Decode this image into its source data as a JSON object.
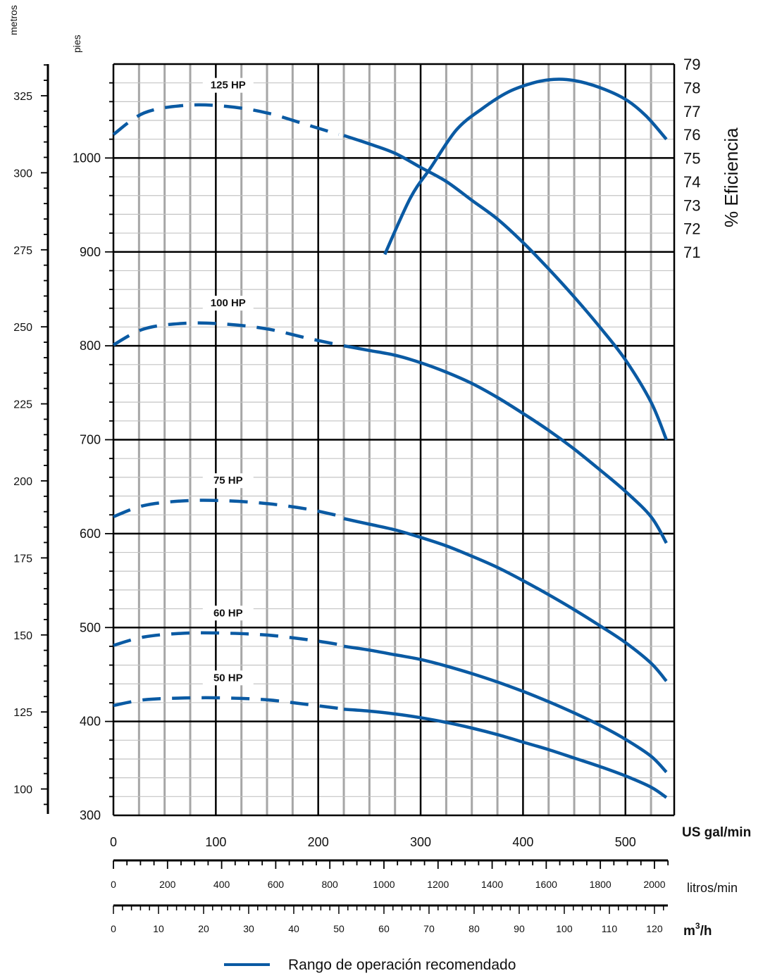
{
  "chart_data": {
    "type": "line",
    "title": "",
    "x_unit_label": "US gal/min",
    "y_unit_label": "pies",
    "y2_unit_label": "metros",
    "eff_axis_label": "% Eficiencia",
    "liters_label": "litros/min",
    "m3h_label_base": "m",
    "m3h_label_sup": "3",
    "m3h_label_tail": "/h",
    "legend_label": "Rango de operación recomendado",
    "xlim": [
      0,
      550
    ],
    "ylim": [
      300,
      1100
    ],
    "eff_lim": [
      71,
      79
    ],
    "metros_lim": [
      91.44,
      335.28
    ],
    "x_ticks": [
      "0",
      "100",
      "200",
      "300",
      "400",
      "500"
    ],
    "y_ticks": [
      "300",
      "400",
      "500",
      "600",
      "700",
      "800",
      "900",
      "1000"
    ],
    "metros_ticks": [
      "100",
      "125",
      "150",
      "175",
      "200",
      "225",
      "250",
      "275",
      "300",
      "325"
    ],
    "eff_ticks": [
      "71",
      "72",
      "73",
      "74",
      "75",
      "76",
      "77",
      "78",
      "79"
    ],
    "lpm_ticks": [
      "0",
      "200",
      "400",
      "600",
      "800",
      "1000",
      "1200",
      "1400",
      "1600",
      "1800",
      "2000"
    ],
    "m3h_ticks": [
      "0",
      "10",
      "20",
      "30",
      "40",
      "50",
      "60",
      "70",
      "80",
      "90",
      "100",
      "110",
      "120"
    ],
    "grid": true,
    "legend_position": "bottom-center",
    "series": [
      {
        "name": "125 HP",
        "color": "#0a5aa3",
        "dashed_points": [
          [
            0,
            1025
          ],
          [
            30,
            1048
          ],
          [
            70,
            1056
          ],
          [
            110,
            1055
          ],
          [
            150,
            1048
          ],
          [
            190,
            1035
          ],
          [
            220,
            1025
          ]
        ],
        "solid_points": [
          [
            225,
            1024
          ],
          [
            250,
            1015
          ],
          [
            275,
            1005
          ],
          [
            300,
            990
          ],
          [
            325,
            975
          ],
          [
            350,
            955
          ],
          [
            375,
            935
          ],
          [
            400,
            910
          ],
          [
            425,
            882
          ],
          [
            450,
            852
          ],
          [
            475,
            820
          ],
          [
            500,
            785
          ],
          [
            525,
            740
          ],
          [
            540,
            700
          ]
        ]
      },
      {
        "name": "100 HP",
        "color": "#0a5aa3",
        "dashed_points": [
          [
            0,
            801
          ],
          [
            30,
            818
          ],
          [
            70,
            824
          ],
          [
            110,
            823
          ],
          [
            150,
            818
          ],
          [
            190,
            808
          ],
          [
            220,
            801
          ]
        ],
        "solid_points": [
          [
            225,
            800
          ],
          [
            250,
            795
          ],
          [
            275,
            790
          ],
          [
            300,
            782
          ],
          [
            325,
            772
          ],
          [
            350,
            760
          ],
          [
            375,
            745
          ],
          [
            400,
            728
          ],
          [
            425,
            710
          ],
          [
            450,
            690
          ],
          [
            475,
            668
          ],
          [
            500,
            645
          ],
          [
            525,
            618
          ],
          [
            540,
            590
          ]
        ]
      },
      {
        "name": "75 HP",
        "color": "#0a5aa3",
        "dashed_points": [
          [
            0,
            618
          ],
          [
            30,
            630
          ],
          [
            70,
            635
          ],
          [
            110,
            635
          ],
          [
            150,
            632
          ],
          [
            190,
            626
          ],
          [
            220,
            619
          ]
        ],
        "solid_points": [
          [
            225,
            616
          ],
          [
            250,
            610
          ],
          [
            275,
            604
          ],
          [
            300,
            596
          ],
          [
            325,
            587
          ],
          [
            350,
            576
          ],
          [
            375,
            564
          ],
          [
            400,
            550
          ],
          [
            425,
            535
          ],
          [
            450,
            519
          ],
          [
            475,
            502
          ],
          [
            500,
            484
          ],
          [
            525,
            462
          ],
          [
            540,
            443
          ]
        ]
      },
      {
        "name": "60 HP",
        "color": "#0a5aa3",
        "dashed_points": [
          [
            0,
            481
          ],
          [
            30,
            490
          ],
          [
            70,
            494
          ],
          [
            110,
            494
          ],
          [
            150,
            492
          ],
          [
            190,
            487
          ],
          [
            220,
            482
          ]
        ],
        "solid_points": [
          [
            225,
            480
          ],
          [
            250,
            476
          ],
          [
            275,
            471
          ],
          [
            300,
            466
          ],
          [
            325,
            459
          ],
          [
            350,
            451
          ],
          [
            375,
            442
          ],
          [
            400,
            432
          ],
          [
            425,
            421
          ],
          [
            450,
            409
          ],
          [
            475,
            396
          ],
          [
            500,
            381
          ],
          [
            525,
            363
          ],
          [
            540,
            346
          ]
        ]
      },
      {
        "name": "50 HP",
        "color": "#0a5aa3",
        "dashed_points": [
          [
            0,
            417
          ],
          [
            30,
            423
          ],
          [
            70,
            425
          ],
          [
            110,
            425
          ],
          [
            150,
            423
          ],
          [
            190,
            418
          ],
          [
            220,
            414
          ]
        ],
        "solid_points": [
          [
            225,
            413
          ],
          [
            250,
            411
          ],
          [
            275,
            408
          ],
          [
            300,
            404
          ],
          [
            325,
            399
          ],
          [
            350,
            393
          ],
          [
            375,
            386
          ],
          [
            400,
            378
          ],
          [
            425,
            370
          ],
          [
            450,
            361
          ],
          [
            475,
            352
          ],
          [
            500,
            342
          ],
          [
            525,
            330
          ],
          [
            540,
            319
          ]
        ]
      },
      {
        "name": "% Eficiencia",
        "axis": "right",
        "color": "#0a5aa3",
        "solid_points": [
          [
            265,
            70.9
          ],
          [
            290,
            73.3
          ],
          [
            310,
            74.6
          ],
          [
            335,
            76.2
          ],
          [
            360,
            77.1
          ],
          [
            385,
            77.8
          ],
          [
            410,
            78.2
          ],
          [
            430,
            78.35
          ],
          [
            450,
            78.3
          ],
          [
            475,
            78.0
          ],
          [
            500,
            77.5
          ],
          [
            520,
            76.8
          ],
          [
            540,
            75.8
          ]
        ]
      }
    ]
  }
}
